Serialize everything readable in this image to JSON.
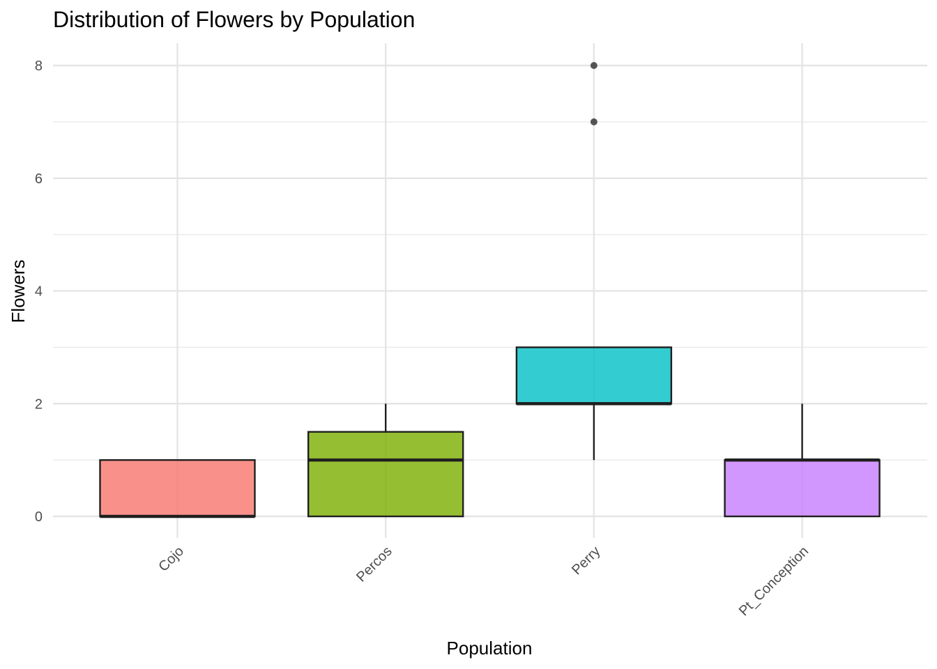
{
  "chart_data": {
    "type": "boxplot",
    "title": "Distribution of Flowers by Population",
    "xlabel": "Population",
    "ylabel": "Flowers",
    "categories": [
      "Cojo",
      "Percos",
      "Perry",
      "Pt_Conception"
    ],
    "boxes": [
      {
        "category": "Cojo",
        "whisker_low": 0,
        "q1": 0,
        "median": 0,
        "q3": 1,
        "whisker_high": 1,
        "outliers": [],
        "color": "#F8766D"
      },
      {
        "category": "Percos",
        "whisker_low": 0,
        "q1": 0,
        "median": 1,
        "q3": 1.5,
        "whisker_high": 2,
        "outliers": [],
        "color": "#7CAE00"
      },
      {
        "category": "Perry",
        "whisker_low": 1,
        "q1": 2,
        "median": 2,
        "q3": 3,
        "whisker_high": 3,
        "outliers": [
          7,
          8
        ],
        "color": "#00BFC4"
      },
      {
        "category": "Pt_Conception",
        "whisker_low": 0,
        "q1": 0,
        "median": 1,
        "q3": 1,
        "whisker_high": 2,
        "outliers": [],
        "color": "#C77CFF"
      }
    ],
    "yticks": [
      0,
      2,
      4,
      6,
      8
    ],
    "ylim": [
      -0.4,
      8.4
    ],
    "grid": true,
    "legend": "none"
  }
}
